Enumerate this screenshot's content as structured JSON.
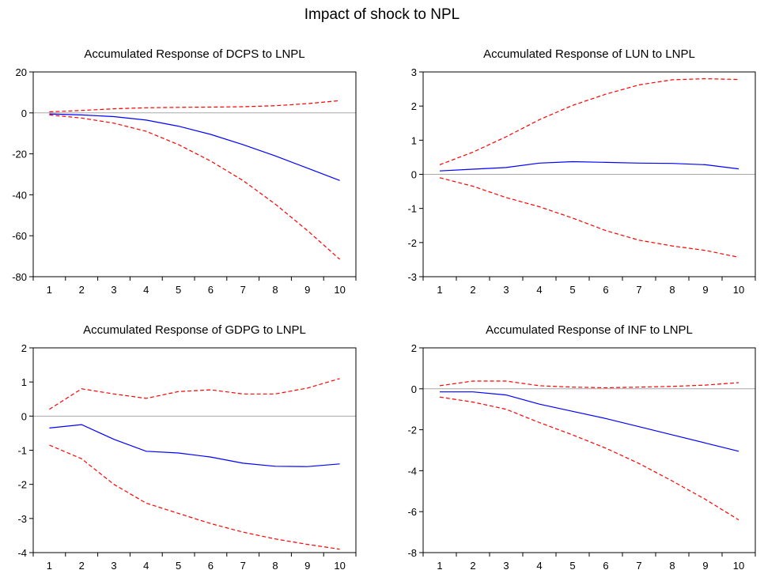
{
  "title": "Impact of shock to NPL",
  "chart_data": [
    {
      "type": "line",
      "title": "Accumulated Response of DCPS to LNPL",
      "x": [
        1,
        2,
        3,
        4,
        5,
        6,
        7,
        8,
        9,
        10
      ],
      "ylim": [
        -80,
        20
      ],
      "yticks": [
        20,
        0,
        -20,
        -40,
        -60,
        -80
      ],
      "series": [
        {
          "role": "response",
          "color": "#0000ff",
          "dashed": false,
          "values": [
            -0.5,
            -1,
            -1.8,
            -3.5,
            -6.5,
            -10.5,
            -15.5,
            -21,
            -27,
            -33
          ]
        },
        {
          "role": "upper",
          "color": "#ff0000",
          "dashed": true,
          "values": [
            0.5,
            1.2,
            2,
            2.5,
            2.7,
            2.8,
            3,
            3.5,
            4.5,
            6
          ]
        },
        {
          "role": "lower",
          "color": "#ff0000",
          "dashed": true,
          "values": [
            -1,
            -2.5,
            -5,
            -9,
            -15.5,
            -23.5,
            -33,
            -44.5,
            -57.5,
            -71.5
          ]
        }
      ]
    },
    {
      "type": "line",
      "title": "Accumulated Response of LUN to LNPL",
      "x": [
        1,
        2,
        3,
        4,
        5,
        6,
        7,
        8,
        9,
        10
      ],
      "ylim": [
        -3,
        3
      ],
      "yticks": [
        3,
        2,
        1,
        0,
        -1,
        -2,
        -3
      ],
      "series": [
        {
          "role": "response",
          "color": "#0000ff",
          "dashed": false,
          "values": [
            0.1,
            0.15,
            0.2,
            0.33,
            0.37,
            0.35,
            0.33,
            0.32,
            0.28,
            0.16
          ]
        },
        {
          "role": "upper",
          "color": "#ff0000",
          "dashed": true,
          "values": [
            0.28,
            0.65,
            1.1,
            1.6,
            2.02,
            2.35,
            2.62,
            2.77,
            2.8,
            2.78
          ]
        },
        {
          "role": "lower",
          "color": "#ff0000",
          "dashed": true,
          "values": [
            -0.1,
            -0.35,
            -0.68,
            -0.95,
            -1.28,
            -1.65,
            -1.93,
            -2.1,
            -2.23,
            -2.43
          ]
        }
      ]
    },
    {
      "type": "line",
      "title": "Accumulated Response of GDPG to LNPL",
      "x": [
        1,
        2,
        3,
        4,
        5,
        6,
        7,
        8,
        9,
        10
      ],
      "ylim": [
        -4,
        2
      ],
      "yticks": [
        2,
        1,
        0,
        -1,
        -2,
        -3,
        -4
      ],
      "series": [
        {
          "role": "response",
          "color": "#0000ff",
          "dashed": false,
          "values": [
            -0.35,
            -0.25,
            -0.68,
            -1.03,
            -1.08,
            -1.2,
            -1.38,
            -1.47,
            -1.48,
            -1.4
          ]
        },
        {
          "role": "upper",
          "color": "#ff0000",
          "dashed": true,
          "values": [
            0.2,
            0.8,
            0.65,
            0.52,
            0.72,
            0.77,
            0.65,
            0.65,
            0.82,
            1.1
          ]
        },
        {
          "role": "lower",
          "color": "#ff0000",
          "dashed": true,
          "values": [
            -0.85,
            -1.25,
            -2,
            -2.55,
            -2.85,
            -3.15,
            -3.4,
            -3.6,
            -3.76,
            -3.9
          ]
        }
      ]
    },
    {
      "type": "line",
      "title": "Accumulated Response of INF to LNPL",
      "x": [
        1,
        2,
        3,
        4,
        5,
        6,
        7,
        8,
        9,
        10
      ],
      "ylim": [
        -8,
        2
      ],
      "yticks": [
        2,
        0,
        -2,
        -4,
        -6,
        -8
      ],
      "series": [
        {
          "role": "response",
          "color": "#0000ff",
          "dashed": false,
          "values": [
            -0.15,
            -0.15,
            -0.3,
            -0.75,
            -1.1,
            -1.45,
            -1.85,
            -2.25,
            -2.65,
            -3.05
          ]
        },
        {
          "role": "upper",
          "color": "#ff0000",
          "dashed": true,
          "values": [
            0.15,
            0.38,
            0.38,
            0.15,
            0.08,
            0.05,
            0.08,
            0.12,
            0.18,
            0.3
          ]
        },
        {
          "role": "lower",
          "color": "#ff0000",
          "dashed": true,
          "values": [
            -0.4,
            -0.65,
            -1,
            -1.65,
            -2.25,
            -2.9,
            -3.65,
            -4.5,
            -5.4,
            -6.4
          ]
        }
      ]
    }
  ]
}
